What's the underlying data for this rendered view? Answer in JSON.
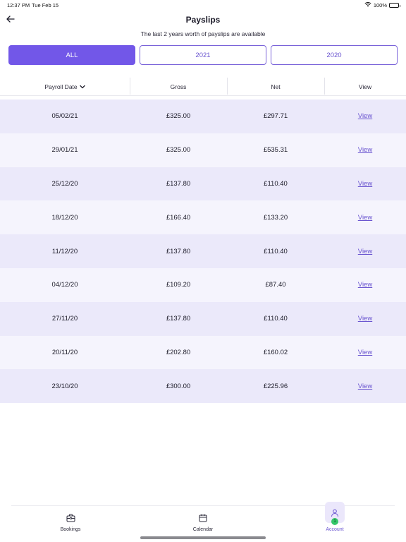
{
  "status_bar": {
    "time": "12:37 PM",
    "date": "Tue Feb 15",
    "battery": "100%"
  },
  "header": {
    "title": "Payslips",
    "subtitle": "The last 2 years worth of payslips are available"
  },
  "filters": [
    {
      "label": "ALL",
      "active": true
    },
    {
      "label": "2021",
      "active": false
    },
    {
      "label": "2020",
      "active": false
    }
  ],
  "table": {
    "columns": {
      "date": "Payroll Date",
      "gross": "Gross",
      "net": "Net",
      "view": "View"
    },
    "rows": [
      {
        "date": "05/02/21",
        "gross": "£325.00",
        "net": "£297.71",
        "view": "View"
      },
      {
        "date": "29/01/21",
        "gross": "£325.00",
        "net": "£535.31",
        "view": "View"
      },
      {
        "date": "25/12/20",
        "gross": "£137.80",
        "net": "£110.40",
        "view": "View"
      },
      {
        "date": "18/12/20",
        "gross": "£166.40",
        "net": "£133.20",
        "view": "View"
      },
      {
        "date": "11/12/20",
        "gross": "£137.80",
        "net": "£110.40",
        "view": "View"
      },
      {
        "date": "04/12/20",
        "gross": "£109.20",
        "net": "£87.40",
        "view": "View"
      },
      {
        "date": "27/11/20",
        "gross": "£137.80",
        "net": "£110.40",
        "view": "View"
      },
      {
        "date": "20/11/20",
        "gross": "£202.80",
        "net": "£160.02",
        "view": "View"
      },
      {
        "date": "23/10/20",
        "gross": "£300.00",
        "net": "£225.96",
        "view": "View"
      }
    ]
  },
  "tab_bar": {
    "bookings": {
      "label": "Bookings",
      "icon": "briefcase-icon"
    },
    "calendar": {
      "label": "Calendar",
      "icon": "calendar-icon"
    },
    "account": {
      "label": "Account",
      "icon": "person-icon",
      "badge": "1",
      "active": true
    }
  },
  "colors": {
    "accent": "#7257e8",
    "row_odd": "#ebe9fa",
    "row_even": "#f5f4fd",
    "badge": "#35c769"
  }
}
